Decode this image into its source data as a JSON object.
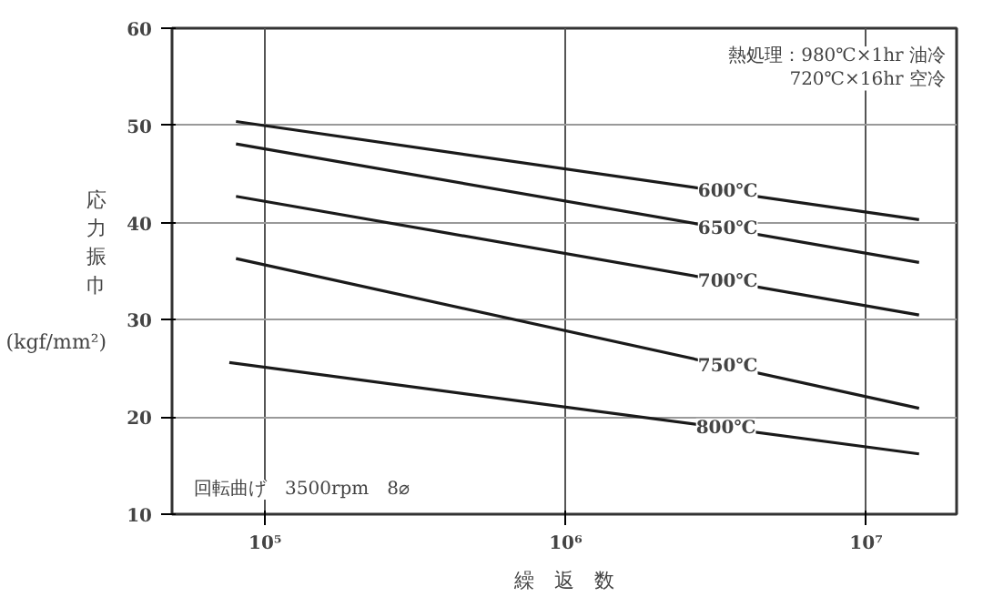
{
  "chart_data": {
    "type": "line",
    "xlabel": "繰　返　数",
    "ylabel": "応力振巾 (kgf/mm²)",
    "log": "x",
    "grid": true,
    "xlim": [
      49000,
      20000000
    ],
    "ylim": [
      10,
      60
    ],
    "xticks": [
      {
        "value": 100000,
        "label": "10⁵"
      },
      {
        "value": 1000000,
        "label": "10⁶"
      },
      {
        "value": 10000000,
        "label": "10⁷"
      }
    ],
    "yticks": [
      10,
      20,
      30,
      40,
      50,
      60
    ],
    "series": [
      {
        "name": "600℃",
        "color": "#1a1a1a",
        "x": [
          80000,
          15000000
        ],
        "values": [
          50.4,
          40.3
        ]
      },
      {
        "name": "650℃",
        "color": "#1a1a1a",
        "x": [
          80000,
          15000000
        ],
        "values": [
          48.1,
          35.9
        ]
      },
      {
        "name": "700℃",
        "color": "#1a1a1a",
        "x": [
          80000,
          15000000
        ],
        "values": [
          42.7,
          30.5
        ]
      },
      {
        "name": "750℃",
        "color": "#1a1a1a",
        "x": [
          80000,
          15000000
        ],
        "values": [
          36.3,
          20.9
        ]
      },
      {
        "name": "800℃",
        "color": "#1a1a1a",
        "x": [
          76000,
          15000000
        ],
        "values": [
          25.6,
          16.2
        ]
      }
    ],
    "annotations": [
      "熱処理：980℃×1hr 油冷\n720℃×16hr 空冷",
      "回転曲げ　3500rpm　8⌀"
    ]
  }
}
